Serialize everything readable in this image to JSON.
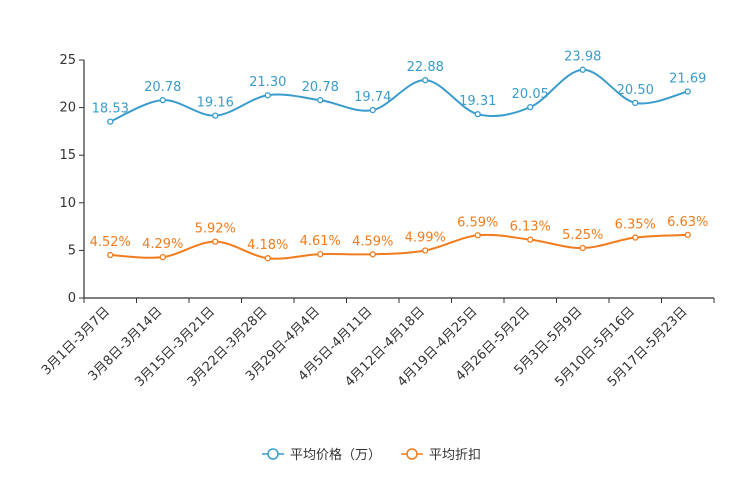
{
  "chart_data": {
    "type": "line",
    "categories": [
      "3月1日-3月7日",
      "3月8日-3月14日",
      "3月15日-3月21日",
      "3月22日-3月28日",
      "3月29日-4月4日",
      "4月5日-4月11日",
      "4月12日-4月18日",
      "4月19日-4月25日",
      "4月26日-5月2日",
      "5月3日-5月9日",
      "5月10日-5月16日",
      "5月17日-5月23日"
    ],
    "series": [
      {
        "name": "平均价格（万）",
        "color": "#3a9ccc",
        "values": [
          18.53,
          20.78,
          19.16,
          21.3,
          20.78,
          19.74,
          22.88,
          19.31,
          20.05,
          23.98,
          20.5,
          21.69
        ],
        "labels": [
          "18.53",
          "20.78",
          "19.16",
          "21.30",
          "20.78",
          "19.74",
          "22.88",
          "19.31",
          "20.05",
          "23.98",
          "20.50",
          "21.69"
        ]
      },
      {
        "name": "平均折扣",
        "color": "#f07c1d",
        "values": [
          4.52,
          4.29,
          5.92,
          4.18,
          4.61,
          4.59,
          4.99,
          6.59,
          6.13,
          5.25,
          6.35,
          6.63
        ],
        "labels": [
          "4.52%",
          "4.29%",
          "5.92%",
          "4.18%",
          "4.61%",
          "4.59%",
          "4.99%",
          "6.59%",
          "6.13%",
          "5.25%",
          "6.35%",
          "6.63%"
        ]
      }
    ],
    "yticks": [
      "0",
      "5",
      "10",
      "15",
      "20",
      "25"
    ],
    "ylim": [
      0,
      25
    ],
    "legend_position": "bottom-center",
    "grid": false
  }
}
